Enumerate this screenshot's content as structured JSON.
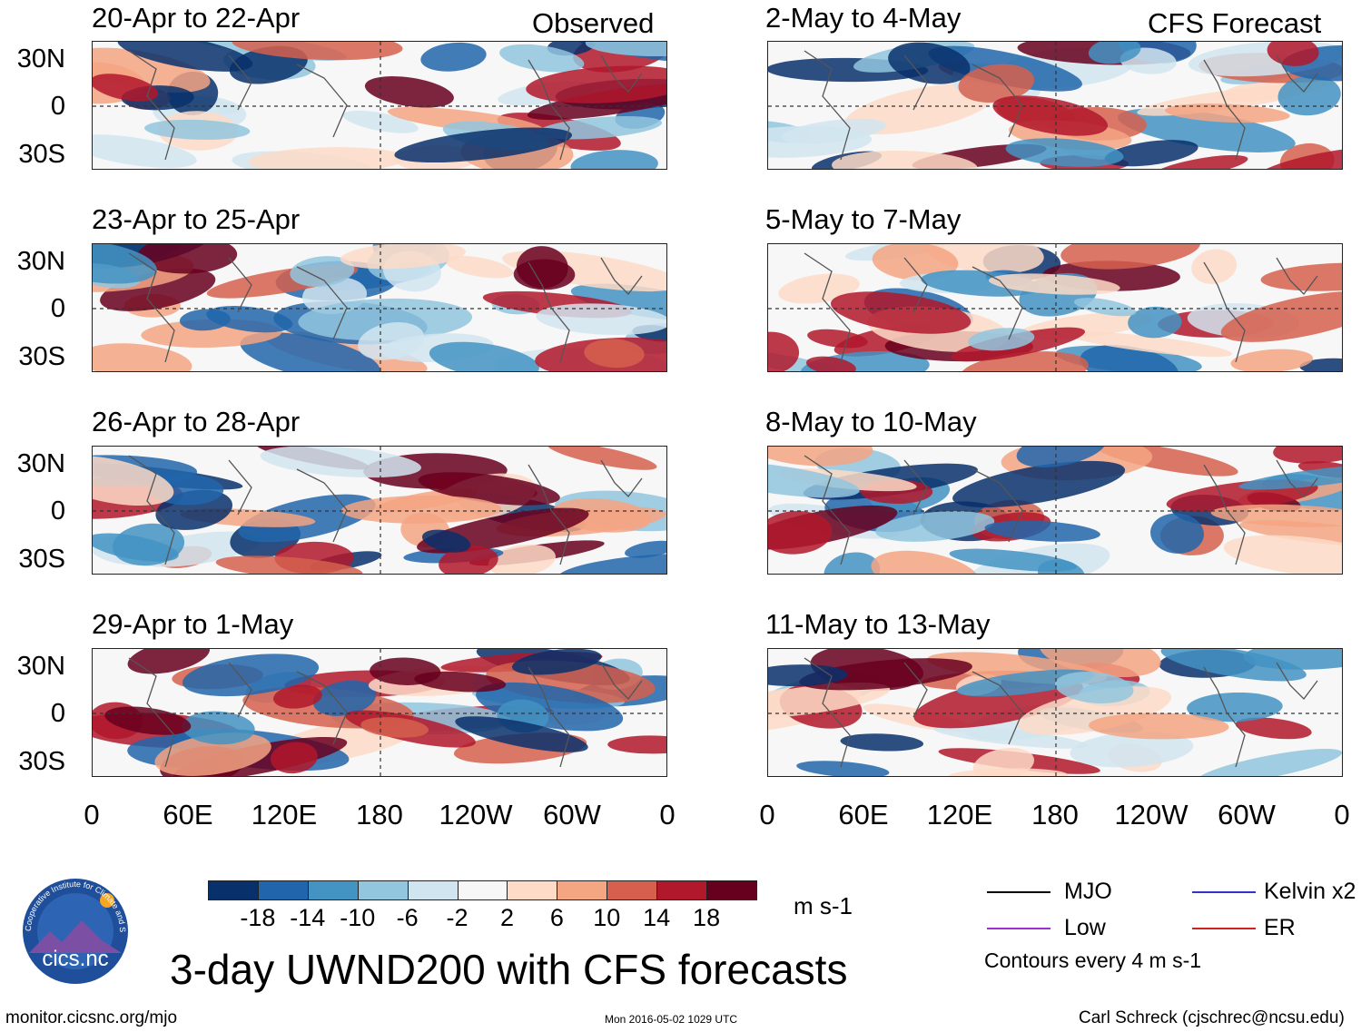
{
  "header": {
    "observed_label": "Observed",
    "forecast_label": "CFS Forecast"
  },
  "panels": {
    "observed": [
      "20-Apr to 22-Apr",
      "23-Apr to 25-Apr",
      "26-Apr to 28-Apr",
      "29-Apr to 1-May"
    ],
    "forecast": [
      "2-May to 4-May",
      "5-May to 7-May",
      "8-May to 10-May",
      "11-May to 13-May"
    ]
  },
  "axes": {
    "lat_labels": [
      "30N",
      "0",
      "30S"
    ],
    "lon_labels": [
      "0",
      "60E",
      "120E",
      "180",
      "120W",
      "60W",
      "0"
    ]
  },
  "colorbar": {
    "levels": [
      "-18",
      "-14",
      "-10",
      "-6",
      "-2",
      "2",
      "6",
      "10",
      "14",
      "18"
    ],
    "colors": [
      "#08306b",
      "#2166ac",
      "#4393c3",
      "#92c5de",
      "#d1e5f0",
      "#f7f7f7",
      "#fddbc7",
      "#f4a582",
      "#d6604d",
      "#b2182b",
      "#67001f"
    ],
    "units": "m s-1"
  },
  "legend": {
    "items": [
      {
        "label": "MJO",
        "color": "#000000"
      },
      {
        "label": "Kelvin x2",
        "color": "#3333cc"
      },
      {
        "label": "Low",
        "color": "#9933cc"
      },
      {
        "label": "ER",
        "color": "#cc2222"
      }
    ],
    "note": "Contours every 4 m s-1"
  },
  "footer": {
    "title": "3-day UWND200 with CFS forecasts",
    "url": "monitor.cicsnc.org/mjo",
    "timestamp": "Mon 2016-05-02 1029 UTC",
    "credit": "Carl Schreck (cjschrec@ncsu.edu)",
    "logo_text": "cics.nc",
    "logo_ring_text": "Cooperative Institute for Climate and Satellites"
  }
}
